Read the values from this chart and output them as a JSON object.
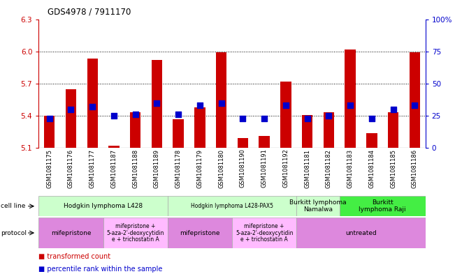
{
  "title": "GDS4978 / 7911170",
  "samples": [
    "GSM1081175",
    "GSM1081176",
    "GSM1081177",
    "GSM1081187",
    "GSM1081188",
    "GSM1081189",
    "GSM1081178",
    "GSM1081179",
    "GSM1081180",
    "GSM1081190",
    "GSM1081191",
    "GSM1081192",
    "GSM1081181",
    "GSM1081182",
    "GSM1081183",
    "GSM1081184",
    "GSM1081185",
    "GSM1081186"
  ],
  "red_values": [
    5.4,
    5.65,
    5.93,
    5.12,
    5.43,
    5.92,
    5.37,
    5.48,
    5.99,
    5.19,
    5.21,
    5.72,
    5.41,
    5.43,
    6.02,
    5.24,
    5.43,
    5.99
  ],
  "blue_percentile": [
    23,
    30,
    32,
    25,
    26,
    35,
    26,
    33,
    35,
    23,
    23,
    33,
    23,
    25,
    33,
    23,
    30,
    33
  ],
  "ylim_left": [
    5.1,
    6.3
  ],
  "ylim_right": [
    0,
    100
  ],
  "yticks_left": [
    5.1,
    5.4,
    5.7,
    6.0,
    6.3
  ],
  "yticks_right": [
    0,
    25,
    50,
    75,
    100
  ],
  "hlines": [
    5.4,
    5.7,
    6.0
  ],
  "bar_base": 5.1,
  "cell_line_groups": [
    {
      "label": "Hodgkin lymphoma L428",
      "start": 0,
      "end": 5,
      "color": "#ccffcc"
    },
    {
      "label": "Hodgkin lymphoma L428-PAX5",
      "start": 6,
      "end": 11,
      "color": "#ccffcc"
    },
    {
      "label": "Burkitt lymphoma\nNamalwa",
      "start": 12,
      "end": 13,
      "color": "#ccffcc"
    },
    {
      "label": "Burkitt\nlymphoma Raji",
      "start": 14,
      "end": 17,
      "color": "#44ee44"
    }
  ],
  "protocol_groups": [
    {
      "label": "mifepristone",
      "start": 0,
      "end": 2,
      "color": "#dd88dd"
    },
    {
      "label": "mifepristone +\n5-aza-2'-deoxycytidin\ne + trichostatin A",
      "start": 3,
      "end": 5,
      "color": "#ffbbff"
    },
    {
      "label": "mifepristone",
      "start": 6,
      "end": 8,
      "color": "#dd88dd"
    },
    {
      "label": "mifepristone +\n5-aza-2'-deoxycytidin\ne + trichostatin A",
      "start": 9,
      "end": 11,
      "color": "#ffbbff"
    },
    {
      "label": "untreated",
      "start": 12,
      "end": 17,
      "color": "#dd88dd"
    }
  ],
  "red_color": "#cc0000",
  "blue_color": "#0000cc",
  "left_axis_color": "#cc0000",
  "right_axis_color": "#0000cc",
  "bar_width": 0.5,
  "blue_marker_size": 28
}
